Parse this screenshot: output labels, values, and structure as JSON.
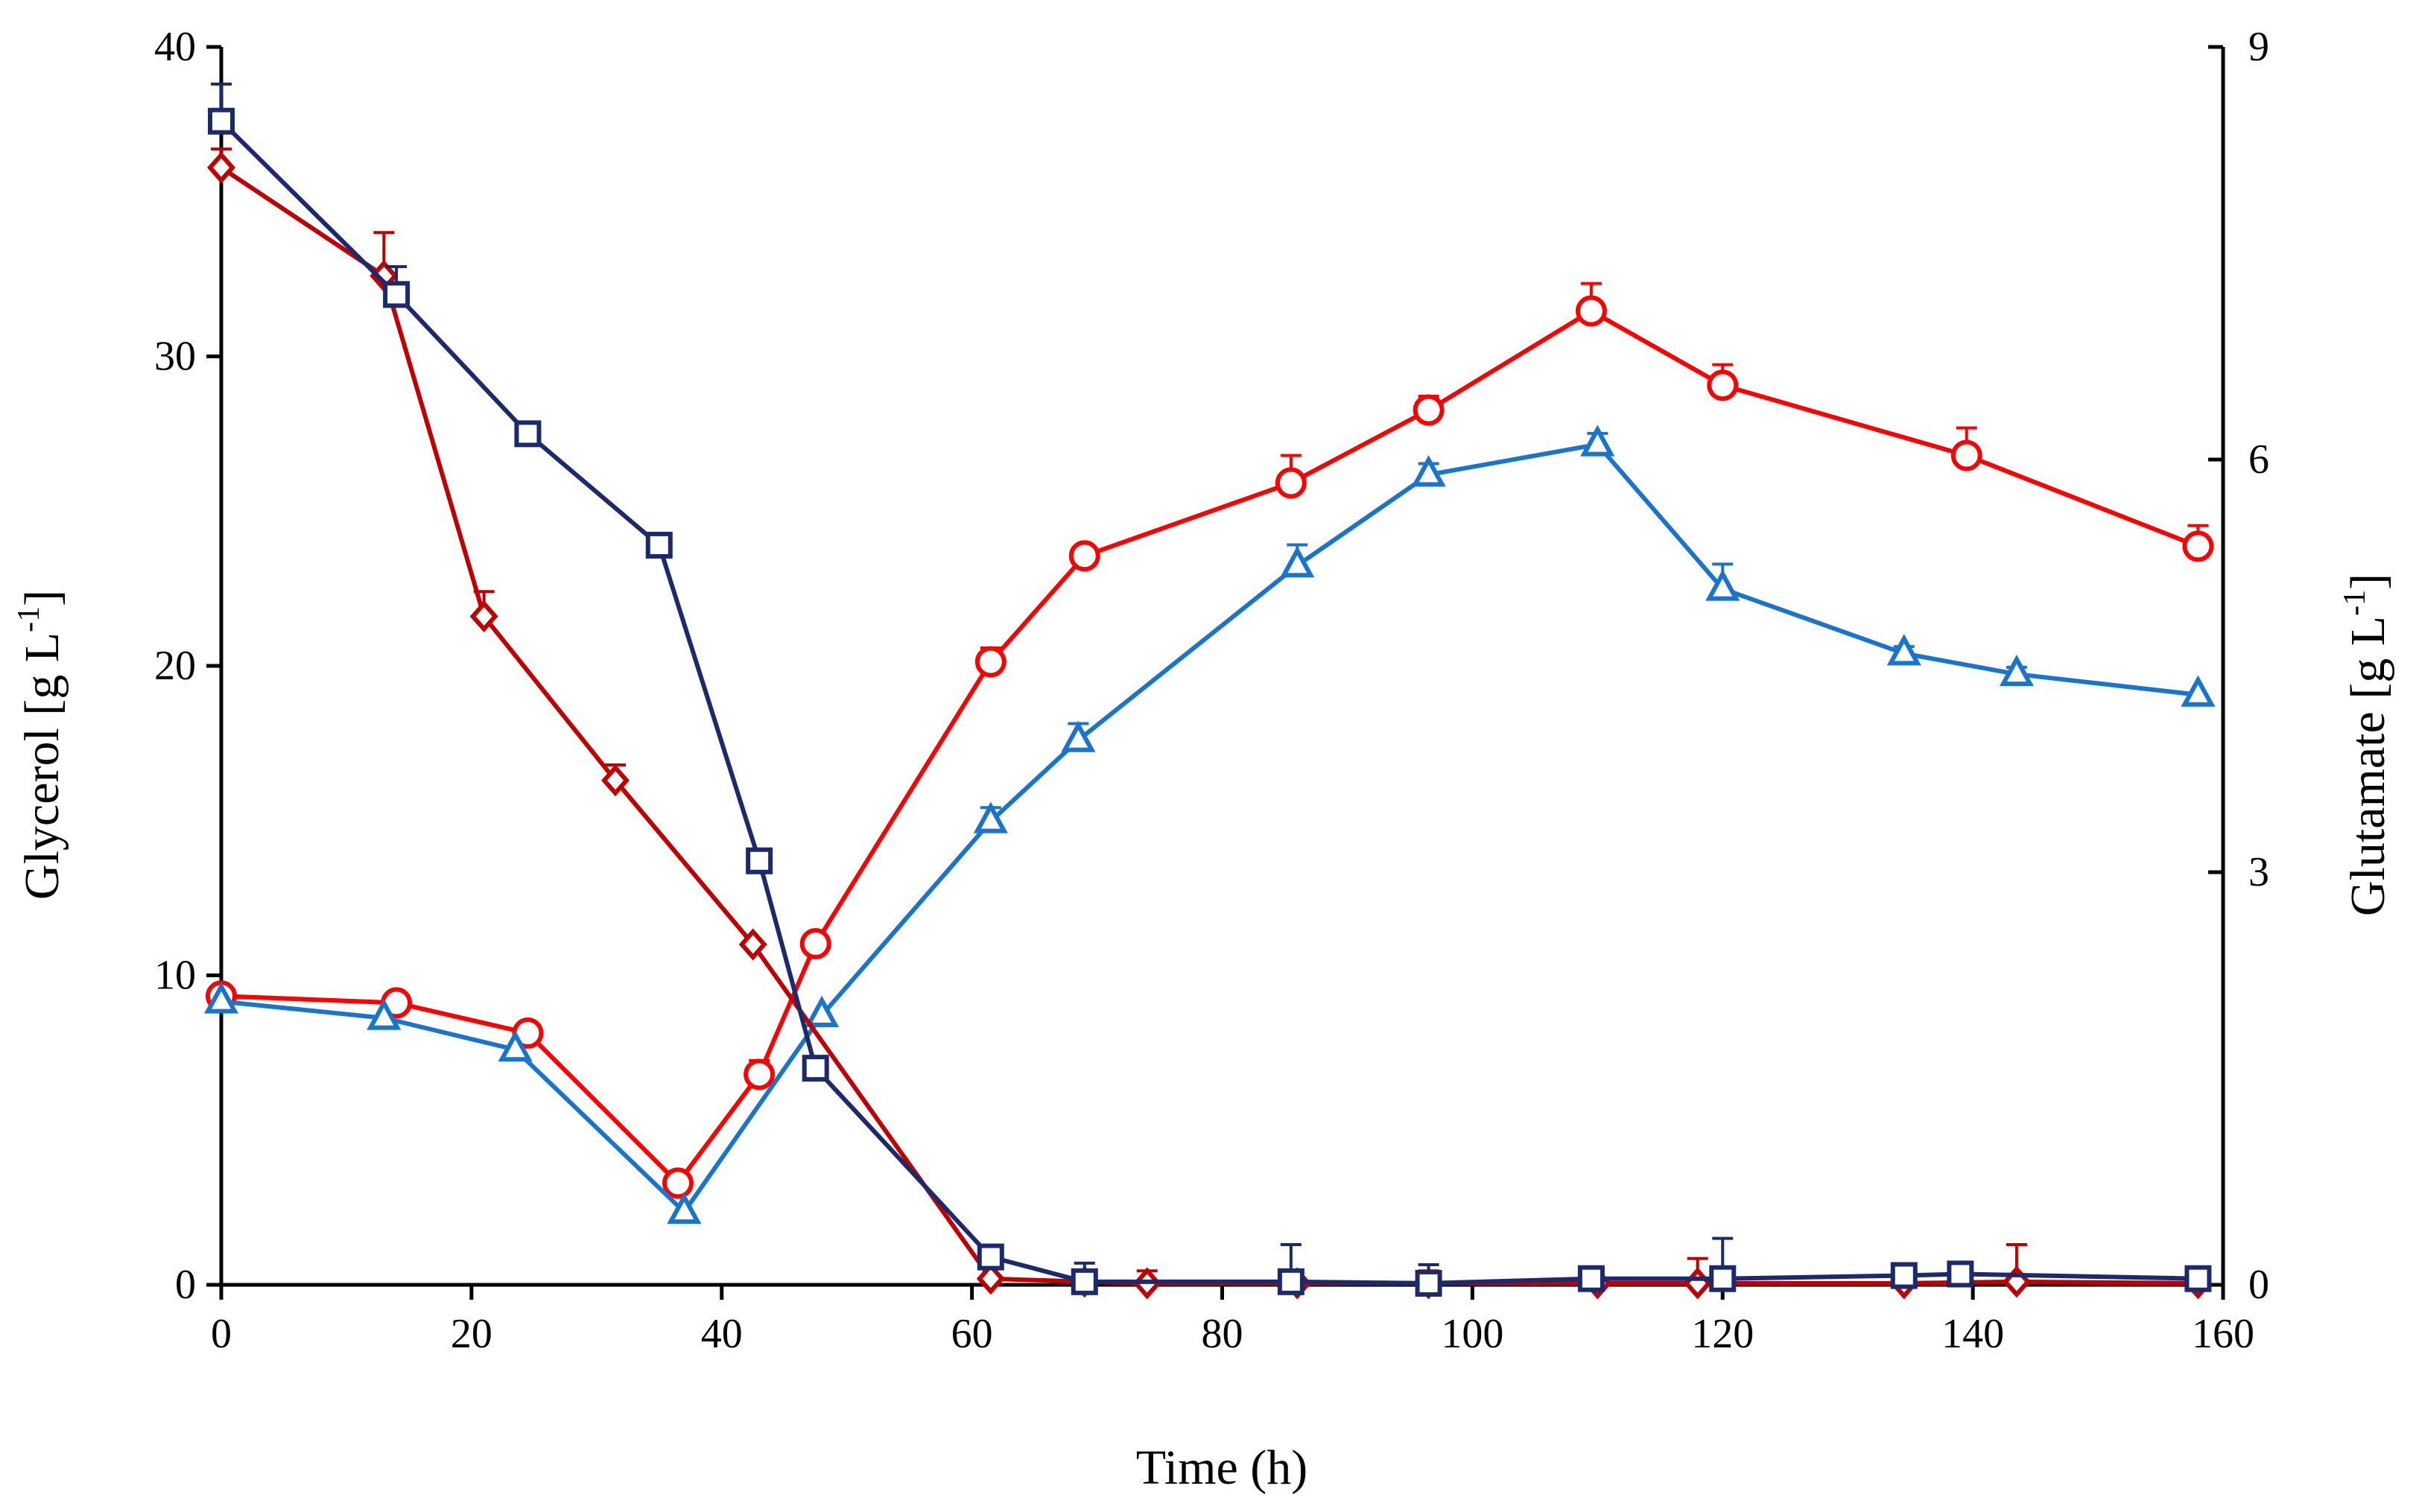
{
  "chart_data": {
    "type": "line",
    "title": "",
    "xlabel": "Time (h)",
    "ylabel_left": "Glycerol [g L",
    "ylabel_right": "Glutamate [g L",
    "ylabel_superscript": "-1",
    "ylabel_close": "]",
    "xlim": [
      0,
      160
    ],
    "ylim_left": [
      0,
      40
    ],
    "ylim_right": [
      0,
      9
    ],
    "x_ticks": [
      "0",
      "20",
      "40",
      "60",
      "80",
      "100",
      "120",
      "140",
      "160"
    ],
    "y_left_ticks": [
      "0",
      "10",
      "20",
      "30",
      "40"
    ],
    "y_right_ticks": [
      "0",
      "3",
      "6",
      "9"
    ],
    "grid": false,
    "series": [
      {
        "name": "Glycerol (squares)",
        "axis": "left",
        "marker": "square",
        "color": "#1a2a6c",
        "x": [
          0,
          14,
          24.5,
          35,
          43,
          47.5,
          61.5,
          69,
          85.5,
          96.5,
          109.5,
          120,
          134.5,
          139,
          158
        ],
        "y": [
          37.6,
          32,
          27.5,
          23.9,
          13.7,
          7,
          0.9,
          0.1,
          0.1,
          0.05,
          0.2,
          0.2,
          0.3,
          0.35,
          0.2
        ],
        "err": [
          1.2,
          0.9,
          0,
          0,
          0,
          0,
          0,
          0.6,
          1.2,
          0.6,
          0,
          1.3,
          0,
          0,
          0
        ]
      },
      {
        "name": "Glycerol (diamonds)",
        "axis": "left",
        "marker": "diamond",
        "color": "#c00000",
        "x": [
          0,
          13,
          21,
          31.5,
          42.5,
          61.5,
          69,
          74,
          86,
          96.5,
          110,
          118,
          134.5,
          143.5,
          158
        ],
        "y": [
          36.1,
          32.6,
          21.6,
          16.3,
          11,
          0.2,
          0.1,
          0.05,
          0.05,
          0.05,
          0.05,
          0.05,
          0.05,
          0.1,
          0.05
        ],
        "err": [
          0.6,
          1.4,
          0.8,
          0.5,
          0,
          0,
          0,
          0.4,
          0,
          0.4,
          0,
          0.8,
          0,
          1.2,
          0
        ]
      },
      {
        "name": "Glutamate (circles)",
        "axis": "right",
        "marker": "circle",
        "color": "#ff0000",
        "x": [
          0,
          14,
          24.5,
          36.5,
          43,
          47.5,
          61.5,
          69,
          85.5,
          96.5,
          109.5,
          120,
          139.5,
          158
        ],
        "y": [
          2.1,
          2.05,
          1.83,
          0.74,
          1.53,
          2.48,
          4.53,
          5.3,
          5.83,
          6.36,
          7.08,
          6.54,
          6.03,
          5.37
        ],
        "err": [
          0,
          0,
          0,
          0,
          0.1,
          0,
          0.1,
          0,
          0.2,
          0.1,
          0.2,
          0.15,
          0.2,
          0.15
        ]
      },
      {
        "name": "Glutamate (triangles)",
        "axis": "right",
        "marker": "triangle",
        "color": "#1874cd",
        "x": [
          0,
          13,
          23.5,
          37,
          48,
          61.5,
          68.5,
          86,
          96.5,
          110,
          120,
          134.5,
          143.5,
          158
        ],
        "y": [
          2.06,
          1.94,
          1.71,
          0.53,
          1.96,
          3.37,
          3.96,
          5.23,
          5.89,
          6.11,
          5.06,
          4.59,
          4.44,
          4.29
        ],
        "err": [
          0,
          0,
          0,
          0,
          0,
          0.1,
          0.12,
          0.15,
          0.08,
          0.08,
          0.18,
          0.05,
          0.05,
          0
        ]
      }
    ]
  }
}
